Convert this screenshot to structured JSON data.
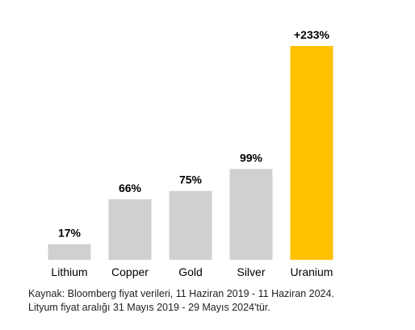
{
  "chart_data": {
    "type": "bar",
    "categories": [
      "Lithium",
      "Copper",
      "Gold",
      "Silver",
      "Uranium"
    ],
    "values": [
      17,
      66,
      75,
      99,
      233
    ],
    "value_labels": [
      "17%",
      "66%",
      "75%",
      "99%",
      "+233%"
    ],
    "unit": "%",
    "ylim": [
      0,
      233
    ],
    "grid": false,
    "legend": "none",
    "colors": {
      "default": "#d0d0d0",
      "highlight": "#ffc000",
      "highlight_category": "Uranium"
    }
  },
  "source": {
    "line1": "Kaynak: Bloomberg fiyat verileri, 11 Haziran 2019 - 11 Haziran 2024.",
    "line2": "Lityum fiyat aralığı 31 Mayıs 2019 - 29 Mayıs 2024'tür."
  }
}
